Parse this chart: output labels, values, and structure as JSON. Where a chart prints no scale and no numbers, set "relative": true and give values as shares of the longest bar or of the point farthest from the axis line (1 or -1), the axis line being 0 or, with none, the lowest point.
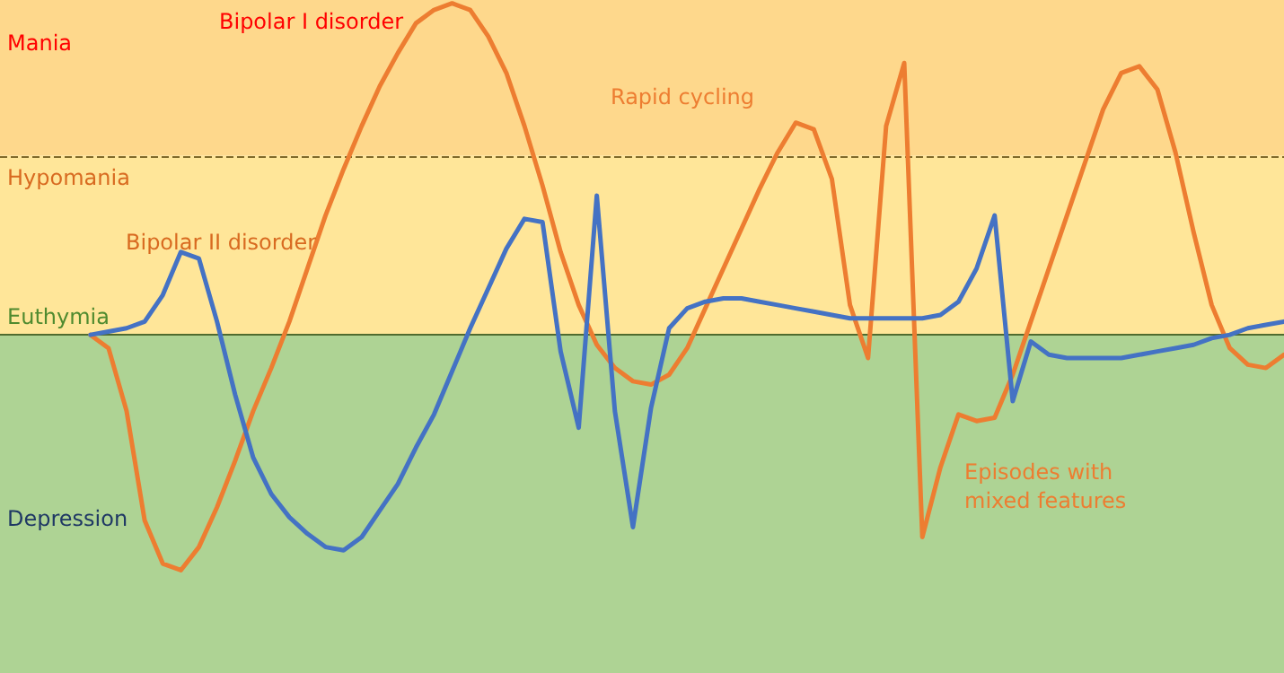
{
  "chart_data": {
    "type": "line",
    "relative": true,
    "legend": false,
    "marker": "none",
    "line_style": "solid",
    "categories": [
      null,
      null,
      null,
      null,
      null,
      null,
      null,
      null,
      null,
      null,
      null,
      null,
      null,
      null,
      null,
      null,
      null,
      null,
      null,
      null,
      null,
      null,
      null,
      null,
      null,
      null,
      null,
      null,
      null,
      null,
      null,
      null,
      null,
      null,
      null,
      null,
      null,
      null,
      null,
      null,
      null,
      null,
      null,
      null,
      null,
      null,
      null,
      null,
      null,
      null,
      null,
      null,
      null,
      null,
      null,
      null,
      null,
      null,
      null,
      null,
      null,
      null,
      null,
      null,
      null,
      null,
      null,
      null,
      null,
      null,
      null,
      null
    ],
    "series": [
      {
        "name": "Bipolar I disorder",
        "color": "#ed7d31",
        "values": [
          null,
          null,
          null,
          null,
          null,
          0,
          -0.04,
          -0.23,
          -0.56,
          -0.69,
          -0.71,
          -0.64,
          -0.52,
          -0.38,
          -0.23,
          -0.1,
          0.04,
          0.2,
          0.36,
          0.5,
          0.63,
          0.75,
          0.85,
          0.94,
          0.98,
          1,
          0.98,
          0.9,
          0.79,
          0.63,
          0.45,
          0.25,
          0.09,
          -0.03,
          -0.1,
          -0.14,
          -0.15,
          -0.12,
          -0.04,
          0.08,
          0.2,
          0.32,
          0.44,
          0.55,
          0.64,
          0.62,
          0.47,
          0.09,
          -0.07,
          0.63,
          0.82,
          -0.61,
          -0.4,
          -0.24,
          -0.26,
          -0.25,
          -0.12,
          0.04,
          0.2,
          0.36,
          0.52,
          0.68,
          0.79,
          0.81,
          0.74,
          0.55,
          0.31,
          0.09,
          -0.04,
          -0.09,
          -0.1,
          -0.06
        ]
      },
      {
        "color": "#4472c4",
        "values": [
          null,
          null,
          null,
          null,
          null,
          0,
          0.01,
          0.02,
          0.04,
          0.12,
          0.25,
          0.23,
          0.04,
          -0.18,
          -0.37,
          -0.48,
          -0.55,
          -0.6,
          -0.64,
          -0.65,
          -0.61,
          -0.53,
          -0.45,
          -0.34,
          -0.24,
          -0.11,
          0.02,
          0.14,
          0.26,
          0.35,
          0.34,
          -0.05,
          -0.28,
          0.42,
          -0.23,
          -0.58,
          -0.22,
          0.02,
          0.08,
          0.1,
          0.11,
          0.11,
          0.1,
          0.09,
          0.08,
          0.07,
          0.06,
          0.05,
          0.05,
          0.05,
          0.05,
          0.05,
          0.06,
          0.1,
          0.2,
          0.36,
          -0.2,
          -0.02,
          -0.06,
          -0.07,
          -0.07,
          -0.07,
          -0.07,
          -0.06,
          -0.05,
          -0.04,
          -0.03,
          -0.01,
          0,
          0.02,
          0.03,
          0.04
        ]
      }
    ],
    "bands": [
      {
        "axis": "y",
        "from": 0.54,
        "to": 1.01,
        "label": "Mania",
        "color": "#fed88c"
      },
      {
        "axis": "y",
        "from": 0,
        "to": 0.54,
        "label": "Hypomania",
        "color": "#ffe699"
      },
      {
        "axis": "y",
        "from": -1.02,
        "to": 0,
        "label": "Depression",
        "color": "#aed394"
      }
    ],
    "ref_lines": [
      {
        "axis": "y",
        "value": 0.54,
        "label": null,
        "color": "#7f6a2a",
        "line_style": "dashed"
      },
      {
        "axis": "y",
        "value": 0,
        "label": "Euthymia",
        "color": "#4f6b2f",
        "line_style": "solid"
      }
    ],
    "annotations": [
      "Bipolar II disorder",
      "Rapid cycling",
      "Episodes with mixed features"
    ]
  }
}
